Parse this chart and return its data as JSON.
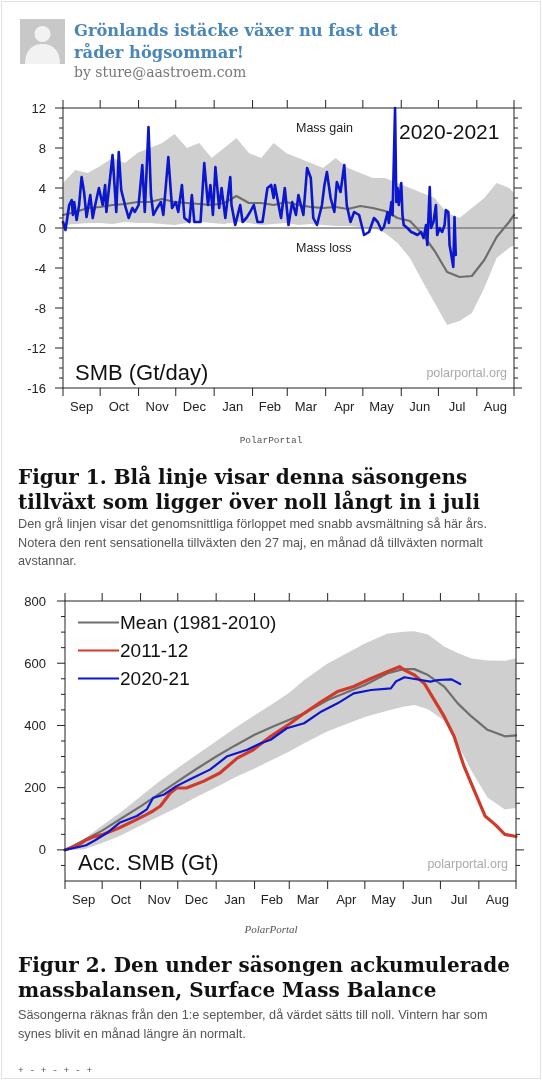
{
  "chart_data": [
    {
      "type": "line",
      "title": "Figur 1. Blå linje visar denna säsongens tillväxt som ligger över noll långt in i juli",
      "subtitle": "Den grå linjen visar det genomsnittliga förloppet med snabb avsmältning så här års. Notera den rent sensationella tillväxten den 27 maj, en månad då tillväxten normalt avstannar.",
      "ylabel": "SMB (Gt/day)",
      "annotations": [
        "Grönlands istäcke växer nu fast det råder högsommar!",
        "by sture@aastroem.com",
        "PolarPortal",
        "Mass gain",
        "Mass loss",
        "2020-2021",
        "polarportal.org"
      ],
      "xlim": [
        "2020-09-01",
        "2021-08-31"
      ],
      "xticks": [
        {
          "value": "2020-09-01",
          "label": null
        },
        {
          "value": "2020-09-16",
          "label": "Sep"
        },
        {
          "value": "2020-10-01",
          "label": null
        },
        {
          "value": "2020-10-16",
          "label": "Oct"
        },
        {
          "value": "2020-11-01",
          "label": null
        },
        {
          "value": "2020-11-16",
          "label": "Nov"
        },
        {
          "value": "2020-12-01",
          "label": null
        },
        {
          "value": "2020-12-16",
          "label": "Dec"
        },
        {
          "value": "2021-01-01",
          "label": null
        },
        {
          "value": "2021-01-16",
          "label": "Jan"
        },
        {
          "value": "2021-02-01",
          "label": null
        },
        {
          "value": "2021-02-15",
          "label": "Feb"
        },
        {
          "value": "2021-03-01",
          "label": null
        },
        {
          "value": "2021-03-16",
          "label": "Mar"
        },
        {
          "value": "2021-04-01",
          "label": null
        },
        {
          "value": "2021-04-16",
          "label": "Apr"
        },
        {
          "value": "2021-05-01",
          "label": null
        },
        {
          "value": "2021-05-16",
          "label": "May"
        },
        {
          "value": "2021-06-01",
          "label": null
        },
        {
          "value": "2021-06-16",
          "label": "Jun"
        },
        {
          "value": "2021-07-01",
          "label": null
        },
        {
          "value": "2021-07-16",
          "label": "Jul"
        },
        {
          "value": "2021-08-01",
          "label": null
        },
        {
          "value": "2021-08-16",
          "label": "Aug"
        },
        {
          "value": "2021-08-31",
          "label": null
        }
      ],
      "ylim": [
        -16,
        12
      ],
      "yticks": [
        -16,
        {
          "value": -15,
          "label": null
        },
        {
          "value": -14,
          "label": null
        },
        {
          "value": -13,
          "label": null
        },
        -12,
        {
          "value": -11,
          "label": null
        },
        {
          "value": -10,
          "label": null
        },
        {
          "value": -9,
          "label": null
        },
        -8,
        {
          "value": -7,
          "label": null
        },
        {
          "value": -6,
          "label": null
        },
        {
          "value": -5,
          "label": null
        },
        -4,
        {
          "value": -3,
          "label": null
        },
        {
          "value": -2,
          "label": null
        },
        {
          "value": -1,
          "label": null
        },
        0,
        {
          "value": 1,
          "label": null
        },
        {
          "value": 2,
          "label": null
        },
        {
          "value": 3,
          "label": null
        },
        4,
        {
          "value": 5,
          "label": null
        },
        {
          "value": 6,
          "label": null
        },
        {
          "value": 7,
          "label": null
        },
        8,
        {
          "value": 9,
          "label": null
        },
        {
          "value": 10,
          "label": null
        },
        {
          "value": 11,
          "label": null
        },
        12
      ],
      "ref_lines": [
        {
          "axis": "y",
          "value": 0,
          "color": "#808080"
        }
      ],
      "series": [
        {
          "color": "#6e6e6e",
          "x": [
            "2020-09-01",
            "2020-09-11",
            "2020-09-21",
            "2020-10-01",
            "2020-10-11",
            "2020-10-21",
            "2020-10-31",
            "2020-11-10",
            "2020-11-20",
            "2020-11-30",
            "2020-12-10",
            "2020-12-20",
            "2020-12-30",
            "2021-01-09",
            "2021-01-19",
            "2021-01-29",
            "2021-02-08",
            "2021-02-18",
            "2021-02-28",
            "2021-03-10",
            "2021-03-20",
            "2021-03-30",
            "2021-04-09",
            "2021-04-19",
            "2021-04-29",
            "2021-05-09",
            "2021-05-19",
            "2021-05-29",
            "2021-06-08",
            "2021-06-18",
            "2021-06-28",
            "2021-07-08",
            "2021-07-18",
            "2021-07-28",
            "2021-08-07",
            "2021-08-17",
            "2021-08-27",
            "2021-08-31"
          ],
          "values": [
            1.3,
            1.6,
            2.0,
            2.1,
            2.3,
            2.4,
            2.6,
            2.6,
            2.9,
            2.6,
            2.5,
            2.4,
            2.3,
            2.5,
            3.2,
            2.5,
            2.5,
            2.3,
            2.6,
            2.3,
            2.1,
            2.0,
            2.1,
            1.9,
            2.2,
            2.0,
            1.7,
            1.0,
            0.7,
            -0.6,
            -2.3,
            -4.4,
            -4.9,
            -4.8,
            -3.2,
            -0.9,
            0.6,
            1.3
          ],
          "lower": [
            0.3,
            0.4,
            0.5,
            0.5,
            0.4,
            0.6,
            0.5,
            0.5,
            0.4,
            0.3,
            0.5,
            0.6,
            0.5,
            0.4,
            0.6,
            0.5,
            0.3,
            0.4,
            0.5,
            0.3,
            0.4,
            0.3,
            0.2,
            0.2,
            0.1,
            0.0,
            -0.5,
            -1.5,
            -3.0,
            -5.3,
            -7.5,
            -9.7,
            -9.3,
            -8.5,
            -6.0,
            -3.0,
            -2.0,
            -1.7
          ],
          "upper": [
            4.5,
            5.8,
            5.5,
            6.2,
            7.0,
            6.5,
            7.5,
            8.0,
            8.5,
            9.4,
            8.0,
            8.5,
            7.0,
            8.0,
            9.0,
            7.5,
            7.0,
            8.5,
            7.5,
            7.0,
            6.5,
            6.0,
            7.0,
            6.0,
            5.5,
            5.0,
            5.0,
            4.5,
            4.0,
            3.5,
            3.0,
            1.5,
            1.0,
            2.0,
            3.0,
            4.5,
            4.0,
            3.5
          ]
        },
        {
          "color": "#0c16cc",
          "x": [
            "2020-09-01",
            "2020-09-03",
            "2020-09-06",
            "2020-09-08",
            "2020-09-09",
            "2020-09-10",
            "2020-09-12",
            "2020-09-14",
            "2020-09-16",
            "2020-09-18",
            "2020-09-20",
            "2020-09-23",
            "2020-09-25",
            "2020-09-27",
            "2020-09-30",
            "2020-10-03",
            "2020-10-05",
            "2020-10-06",
            "2020-10-09",
            "2020-10-11",
            "2020-10-14",
            "2020-10-16",
            "2020-10-18",
            "2020-10-21",
            "2020-10-24",
            "2020-10-27",
            "2020-10-29",
            "2020-11-01",
            "2020-11-04",
            "2020-11-06",
            "2020-11-09",
            "2020-11-11",
            "2020-11-13",
            "2020-11-16",
            "2020-11-19",
            "2020-11-21",
            "2020-11-25",
            "2020-11-28",
            "2020-12-01",
            "2020-12-03",
            "2020-12-06",
            "2020-12-08",
            "2020-12-12",
            "2020-12-14",
            "2020-12-16",
            "2020-12-21",
            "2020-12-24",
            "2020-12-27",
            "2020-12-29",
            "2020-12-31",
            "2021-01-02",
            "2021-01-05",
            "2021-01-07",
            "2021-01-10",
            "2021-01-14",
            "2021-01-15",
            "2021-01-18",
            "2021-01-22",
            "2021-01-24",
            "2021-01-27",
            "2021-01-30",
            "2021-02-02",
            "2021-02-05",
            "2021-02-09",
            "2021-02-13",
            "2021-02-16",
            "2021-02-18",
            "2021-02-19",
            "2021-02-22",
            "2021-02-24",
            "2021-02-27",
            "2021-03-02",
            "2021-03-05",
            "2021-03-08",
            "2021-03-10",
            "2021-03-14",
            "2021-03-17",
            "2021-03-20",
            "2021-03-22",
            "2021-03-25",
            "2021-03-29",
            "2021-03-31",
            "2021-04-02",
            "2021-04-05",
            "2021-04-08",
            "2021-04-10",
            "2021-04-13",
            "2021-04-16",
            "2021-04-18",
            "2021-04-21",
            "2021-04-24",
            "2021-04-28",
            "2021-05-02",
            "2021-05-06",
            "2021-05-10",
            "2021-05-13",
            "2021-05-16",
            "2021-05-18",
            "2021-05-21",
            "2021-05-22",
            "2021-05-24",
            "2021-05-25",
            "2021-05-27",
            "2021-05-28",
            "2021-05-29",
            "2021-05-30",
            "2021-06-01",
            "2021-06-02",
            "2021-06-03",
            "2021-06-06",
            "2021-06-09",
            "2021-06-11",
            "2021-06-14",
            "2021-06-17",
            "2021-06-19",
            "2021-06-21",
            "2021-06-22",
            "2021-06-24",
            "2021-06-25",
            "2021-06-27",
            "2021-06-29",
            "2021-06-30",
            "2021-07-02",
            "2021-07-04",
            "2021-07-06",
            "2021-07-07",
            "2021-07-09",
            "2021-07-10",
            "2021-07-11",
            "2021-07-13",
            "2021-07-14",
            "2021-07-15"
          ],
          "values": [
            0.6,
            -0.2,
            2.3,
            2.8,
            1.3,
            2.6,
            0.8,
            2.3,
            5.1,
            3.6,
            1.1,
            3.3,
            1.0,
            2.3,
            4.0,
            2.3,
            4.3,
            1.6,
            5.0,
            7.3,
            1.6,
            7.6,
            3.8,
            2.3,
            1.0,
            2.0,
            1.6,
            2.3,
            6.3,
            1.6,
            10.1,
            3.3,
            1.3,
            2.0,
            2.6,
            1.3,
            7.1,
            2.0,
            2.6,
            1.6,
            4.3,
            1.0,
            0.6,
            3.3,
            0.6,
            0.6,
            6.5,
            2.3,
            4.3,
            1.3,
            6.1,
            2.0,
            4.0,
            1.0,
            5.1,
            2.3,
            0.3,
            2.3,
            0.6,
            1.0,
            1.6,
            2.3,
            0.6,
            0.6,
            4.0,
            4.3,
            3.0,
            4.3,
            2.3,
            1.0,
            4.0,
            0.3,
            2.6,
            1.3,
            3.3,
            1.3,
            6.0,
            5.0,
            1.0,
            0.3,
            2.3,
            4.3,
            5.6,
            3.0,
            1.6,
            4.6,
            3.6,
            6.3,
            2.3,
            0.6,
            1.6,
            1.3,
            -0.7,
            -0.4,
            1.0,
            0.6,
            -0.2,
            0.1,
            1.6,
            0.5,
            2.6,
            1.3,
            12,
            2.6,
            4.0,
            2.3,
            4.5,
            1.3,
            0.3,
            0,
            -0.4,
            -0.5,
            -0.7,
            -0.4,
            -1.0,
            0.3,
            -1.7,
            4.1,
            0,
            0.6,
            2.3,
            -0.7,
            0,
            -0.4,
            0.3,
            1.8,
            1.6,
            -1.7,
            -2.4,
            -3.9,
            1.1,
            -2.7
          ]
        }
      ]
    },
    {
      "type": "line",
      "title": "Figur 2. Den under säsongen ackumulerade massbalansen, Surface Mass Balance",
      "subtitle": "Säsongerna räknas från den 1:e september, då värdet sätts till noll. Vintern har som synes blivit en månad längre än normalt.",
      "ylabel": "Acc. SMB (Gt)",
      "annotations": [
        "polarportal.org",
        "PolarPortal",
        "+ - + - + - +"
      ],
      "legend": "top left",
      "xlim": [
        "2020-09-01",
        "2021-08-31"
      ],
      "xticks": [
        {
          "value": "2020-09-01",
          "label": null
        },
        {
          "value": "2020-09-16",
          "label": "Sep"
        },
        {
          "value": "2020-10-01",
          "label": null
        },
        {
          "value": "2020-10-16",
          "label": "Oct"
        },
        {
          "value": "2020-11-01",
          "label": null
        },
        {
          "value": "2020-11-16",
          "label": "Nov"
        },
        {
          "value": "2020-12-01",
          "label": null
        },
        {
          "value": "2020-12-16",
          "label": "Dec"
        },
        {
          "value": "2021-01-01",
          "label": null
        },
        {
          "value": "2021-01-16",
          "label": "Jan"
        },
        {
          "value": "2021-02-01",
          "label": null
        },
        {
          "value": "2021-02-15",
          "label": "Feb"
        },
        {
          "value": "2021-03-01",
          "label": null
        },
        {
          "value": "2021-03-16",
          "label": "Mar"
        },
        {
          "value": "2021-04-01",
          "label": null
        },
        {
          "value": "2021-04-16",
          "label": "Apr"
        },
        {
          "value": "2021-05-01",
          "label": null
        },
        {
          "value": "2021-05-16",
          "label": "May"
        },
        {
          "value": "2021-06-01",
          "label": null
        },
        {
          "value": "2021-06-16",
          "label": "Jun"
        },
        {
          "value": "2021-07-01",
          "label": null
        },
        {
          "value": "2021-07-16",
          "label": "Jul"
        },
        {
          "value": "2021-08-01",
          "label": null
        },
        {
          "value": "2021-08-16",
          "label": "Aug"
        },
        {
          "value": "2021-08-31",
          "label": null
        }
      ],
      "ylim": [
        -100,
        800
      ],
      "yticks": [
        {
          "value": -50,
          "label": null
        },
        0,
        {
          "value": 50,
          "label": null
        },
        {
          "value": 100,
          "label": null
        },
        {
          "value": 150,
          "label": null
        },
        200,
        {
          "value": 250,
          "label": null
        },
        {
          "value": 300,
          "label": null
        },
        {
          "value": 350,
          "label": null
        },
        400,
        {
          "value": 450,
          "label": null
        },
        {
          "value": 500,
          "label": null
        },
        {
          "value": 550,
          "label": null
        },
        600,
        {
          "value": 650,
          "label": null
        },
        {
          "value": 700,
          "label": null
        },
        {
          "value": 750,
          "label": null
        },
        800
      ],
      "series": [
        {
          "name": "Mean (1981-2010)",
          "color": "#6e6e6e",
          "x": [
            "2020-09-01",
            "2020-09-16",
            "2020-10-01",
            "2020-10-16",
            "2020-11-01",
            "2020-11-16",
            "2020-12-01",
            "2020-12-16",
            "2021-01-01",
            "2021-01-16",
            "2021-02-01",
            "2021-02-15",
            "2021-03-01",
            "2021-03-13",
            "2021-04-01",
            "2021-05-01",
            "2021-05-19",
            "2021-06-01",
            "2021-06-10",
            "2021-06-21",
            "2021-07-04",
            "2021-07-15",
            "2021-07-26",
            "2021-08-08",
            "2021-08-22",
            "2021-08-31"
          ],
          "values": [
            0,
            30,
            62,
            100,
            140,
            180,
            220,
            260,
            300,
            335,
            370,
            395,
            418,
            439,
            482,
            530,
            567,
            581,
            581,
            562,
            525,
            471,
            429,
            386,
            365,
            368
          ],
          "lower": [
            0,
            1,
            22,
            46,
            78,
            108,
            137,
            170,
            201,
            233,
            262,
            289,
            316,
            343,
            381,
            427,
            447,
            460,
            466,
            452,
            416,
            340,
            254,
            168,
            130,
            135
          ],
          "upper": [
            0,
            33,
            78,
            121,
            172,
            220,
            263,
            305,
            349,
            391,
            433,
            468,
            505,
            546,
            599,
            663,
            695,
            701,
            703,
            692,
            654,
            633,
            615,
            609,
            608,
            615
          ]
        },
        {
          "name": "2011-12",
          "color": "#d03a2a",
          "x": [
            "2020-09-01",
            "2020-09-11",
            "2020-09-18",
            "2020-09-24",
            "2020-10-02",
            "2020-10-15",
            "2020-10-29",
            "2020-11-06",
            "2020-11-11",
            "2020-11-17",
            "2020-11-25",
            "2020-11-30",
            "2020-12-08",
            "2020-12-22",
            "2021-01-04",
            "2021-01-18",
            "2021-01-31",
            "2021-02-14",
            "2021-03-02",
            "2021-03-13",
            "2021-03-27",
            "2021-04-09",
            "2021-04-22",
            "2021-05-06",
            "2021-05-19",
            "2021-05-29",
            "2021-06-02",
            "2021-06-10",
            "2021-06-18",
            "2021-06-26",
            "2021-07-04",
            "2021-07-12",
            "2021-07-20",
            "2021-07-28",
            "2021-08-06",
            "2021-08-14",
            "2021-08-22",
            "2021-08-31"
          ],
          "values": [
            0,
            14,
            32,
            42,
            50,
            71,
            98,
            114,
            125,
            141,
            183,
            199,
            199,
            221,
            247,
            295,
            322,
            365,
            407,
            439,
            477,
            509,
            525,
            551,
            573,
            589,
            578,
            562,
            535,
            482,
            429,
            365,
            269,
            194,
            109,
            82,
            50,
            43
          ]
        },
        {
          "name": "2020-21",
          "color": "#0c16cc",
          "x": [
            "2020-09-01",
            "2020-09-13",
            "2020-09-18",
            "2020-09-25",
            "2020-10-05",
            "2020-10-15",
            "2020-10-29",
            "2020-11-06",
            "2020-11-11",
            "2020-11-20",
            "2020-11-30",
            "2020-12-13",
            "2020-12-27",
            "2021-01-10",
            "2021-01-26",
            "2021-02-06",
            "2021-02-14",
            "2021-02-27",
            "2021-03-13",
            "2021-03-27",
            "2021-04-09",
            "2021-04-22",
            "2021-05-06",
            "2021-05-22",
            "2021-05-26",
            "2021-06-02",
            "2021-06-15",
            "2021-06-23",
            "2021-06-29",
            "2021-07-10",
            "2021-07-17"
          ],
          "values": [
            0,
            10,
            15,
            30,
            55,
            87,
            109,
            130,
            167,
            178,
            205,
            231,
            258,
            301,
            322,
            343,
            354,
            391,
            407,
            445,
            471,
            503,
            514,
            519,
            541,
            555,
            546,
            541,
            546,
            548,
            533
          ]
        }
      ]
    }
  ]
}
